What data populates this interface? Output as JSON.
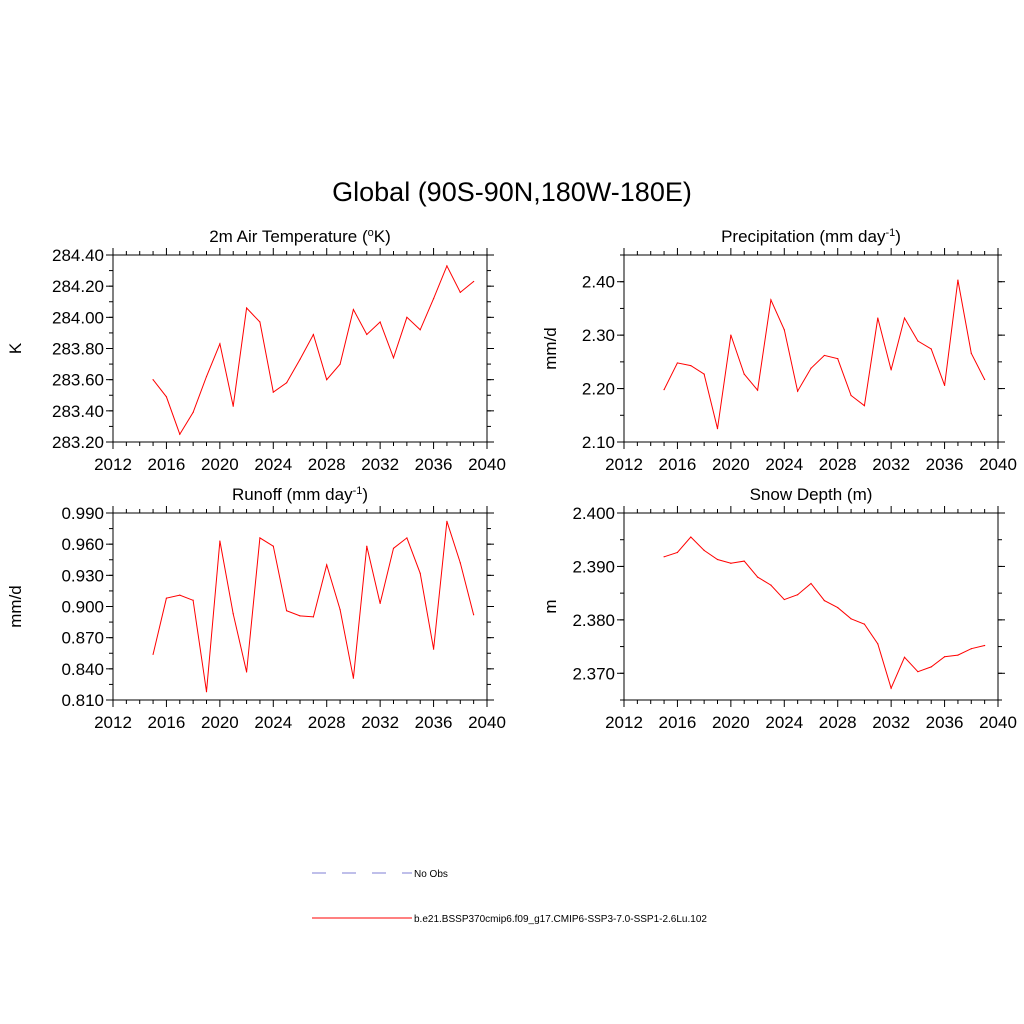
{
  "figure": {
    "title": "Global (90S-90N,180W-180E)"
  },
  "legend": {
    "entries": [
      {
        "label": "No Obs",
        "color": "#9999dd",
        "style": "dashed"
      },
      {
        "label": "b.e21.BSSP370cmip6.f09_g17.CMIP6-SSP3-7.0-SSP1-2.6Lu.102",
        "color": "#ff0000",
        "style": "solid"
      }
    ]
  },
  "chart_data": [
    {
      "type": "line",
      "title": "2m Air Temperature (",
      "title_sup": "o",
      "title_suffix": "K)",
      "title_tail": "",
      "ylabel": "K",
      "xlim": [
        2012,
        2040
      ],
      "xticks": [
        2012,
        2016,
        2020,
        2024,
        2028,
        2032,
        2036,
        2040
      ],
      "xtick_labels": [
        "2012",
        "2016",
        "2020",
        "2024",
        "2028",
        "2032",
        "2036",
        "2040"
      ],
      "ylim": [
        283.2,
        284.4
      ],
      "yticks": [
        283.2,
        283.4,
        283.6,
        283.8,
        284.0,
        284.2,
        284.4
      ],
      "ytick_labels": [
        "283.20",
        "283.40",
        "283.60",
        "283.80",
        "284.00",
        "284.20",
        "284.40"
      ],
      "yminor": 0.1,
      "color": "#ff0000",
      "x": [
        2015,
        2016,
        2017,
        2018,
        2019,
        2020,
        2021,
        2022,
        2023,
        2024,
        2025,
        2026,
        2027,
        2028,
        2029,
        2030,
        2031,
        2032,
        2033,
        2034,
        2035,
        2036,
        2037,
        2038,
        2039
      ],
      "y": [
        283.6,
        283.49,
        283.25,
        283.39,
        283.62,
        283.83,
        283.43,
        284.06,
        283.97,
        283.52,
        283.58,
        283.73,
        283.89,
        283.6,
        283.7,
        284.05,
        283.89,
        283.97,
        283.74,
        284.0,
        283.92,
        284.12,
        284.33,
        284.16,
        284.23
      ]
    },
    {
      "type": "line",
      "title": "Precipitation (mm day",
      "title_sup": "-1",
      "title_suffix": ")",
      "ylabel": "mm/d",
      "xlim": [
        2012,
        2040
      ],
      "xticks": [
        2012,
        2016,
        2020,
        2024,
        2028,
        2032,
        2036,
        2040
      ],
      "xtick_labels": [
        "2012",
        "2016",
        "2020",
        "2024",
        "2028",
        "2032",
        "2036",
        "2040"
      ],
      "ylim": [
        2.1,
        2.45
      ],
      "yticks": [
        2.1,
        2.2,
        2.3,
        2.4
      ],
      "ytick_labels": [
        "2.10",
        "2.20",
        "2.30",
        "2.40"
      ],
      "yminor": 0.05,
      "color": "#ff0000",
      "x": [
        2015,
        2016,
        2017,
        2018,
        2019,
        2020,
        2021,
        2022,
        2023,
        2024,
        2025,
        2026,
        2027,
        2028,
        2029,
        2030,
        2031,
        2032,
        2033,
        2034,
        2035,
        2036,
        2037,
        2038,
        2039
      ],
      "y": [
        2.198,
        2.248,
        2.243,
        2.227,
        2.125,
        2.3,
        2.227,
        2.197,
        2.366,
        2.31,
        2.195,
        2.238,
        2.262,
        2.256,
        2.187,
        2.168,
        2.332,
        2.235,
        2.332,
        2.289,
        2.274,
        2.206,
        2.403,
        2.266,
        2.217
      ]
    },
    {
      "type": "line",
      "title": "Runoff (mm day",
      "title_sup": "-1",
      "title_suffix": ")",
      "ylabel": "mm/d",
      "xlim": [
        2012,
        2040
      ],
      "xticks": [
        2012,
        2016,
        2020,
        2024,
        2028,
        2032,
        2036,
        2040
      ],
      "xtick_labels": [
        "2012",
        "2016",
        "2020",
        "2024",
        "2028",
        "2032",
        "2036",
        "2040"
      ],
      "ylim": [
        0.81,
        0.99
      ],
      "yticks": [
        0.81,
        0.84,
        0.87,
        0.9,
        0.93,
        0.96,
        0.99
      ],
      "ytick_labels": [
        "0.810",
        "0.840",
        "0.870",
        "0.900",
        "0.930",
        "0.960",
        "0.990"
      ],
      "yminor": 0.015,
      "color": "#ff0000",
      "x": [
        2015,
        2016,
        2017,
        2018,
        2019,
        2020,
        2021,
        2022,
        2023,
        2024,
        2025,
        2026,
        2027,
        2028,
        2029,
        2030,
        2031,
        2032,
        2033,
        2034,
        2035,
        2036,
        2037,
        2038,
        2039
      ],
      "y": [
        0.854,
        0.908,
        0.911,
        0.906,
        0.818,
        0.963,
        0.893,
        0.837,
        0.966,
        0.958,
        0.896,
        0.891,
        0.89,
        0.94,
        0.897,
        0.831,
        0.958,
        0.903,
        0.956,
        0.966,
        0.932,
        0.859,
        0.982,
        0.942,
        0.892
      ]
    },
    {
      "type": "line",
      "title": "Snow Depth (m)",
      "title_sup": "",
      "title_suffix": "",
      "ylabel": "m",
      "xlim": [
        2012,
        2040
      ],
      "xticks": [
        2012,
        2016,
        2020,
        2024,
        2028,
        2032,
        2036,
        2040
      ],
      "xtick_labels": [
        "2012",
        "2016",
        "2020",
        "2024",
        "2028",
        "2032",
        "2036",
        "2040"
      ],
      "ylim": [
        2.365,
        2.4
      ],
      "yticks": [
        2.37,
        2.38,
        2.39,
        2.4
      ],
      "ytick_labels": [
        "2.370",
        "2.380",
        "2.390",
        "2.400"
      ],
      "yminor": 0.005,
      "color": "#ff0000",
      "x": [
        2015,
        2016,
        2017,
        2018,
        2019,
        2020,
        2021,
        2022,
        2023,
        2024,
        2025,
        2026,
        2027,
        2028,
        2029,
        2030,
        2031,
        2032,
        2033,
        2034,
        2035,
        2036,
        2037,
        2038,
        2039
      ],
      "y": [
        2.3918,
        2.3926,
        2.3955,
        2.393,
        2.3913,
        2.3906,
        2.391,
        2.388,
        2.3865,
        2.3838,
        2.3847,
        2.3868,
        2.3836,
        2.3823,
        2.3802,
        2.3792,
        2.3755,
        2.3672,
        2.373,
        2.3703,
        2.3712,
        2.3731,
        2.3734,
        2.3746,
        2.3752
      ]
    }
  ]
}
